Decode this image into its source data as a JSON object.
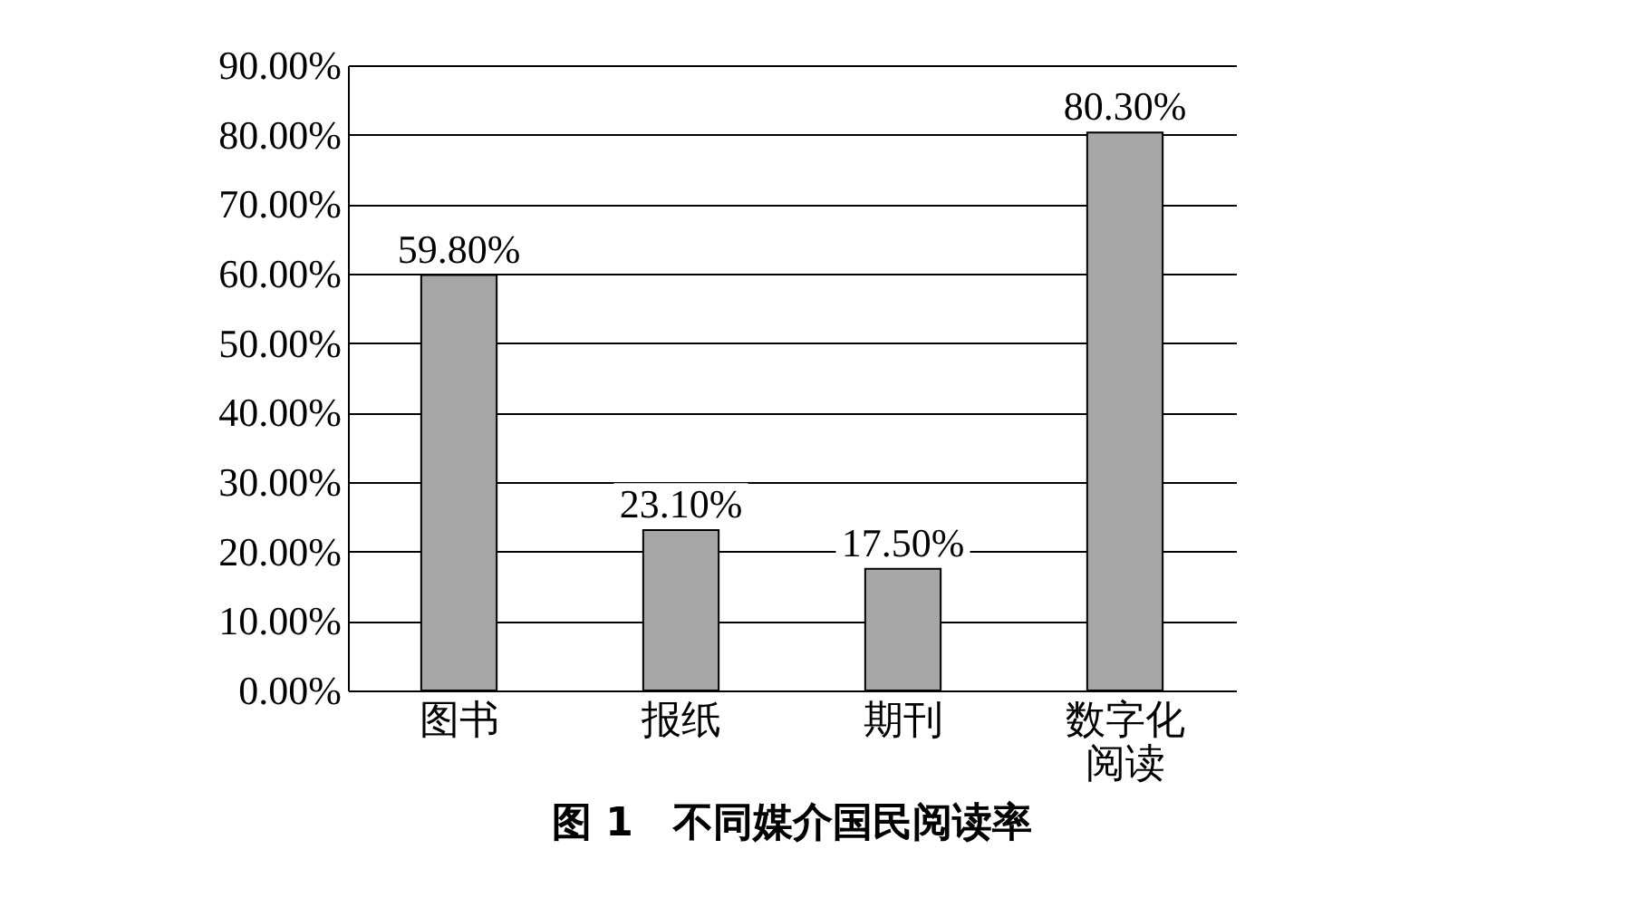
{
  "chart_data": {
    "type": "bar",
    "title": "图 1　不同媒介国民阅读率",
    "categories": [
      "图书",
      "报纸",
      "期刊",
      "数字化阅读"
    ],
    "values": [
      59.8,
      23.1,
      17.5,
      80.3
    ],
    "color": "#a6a6a6",
    "value_labels": [
      "59.80%",
      "23.10%",
      "17.50%",
      "80.30%"
    ],
    "ylim": [
      0,
      90
    ],
    "yticks": [
      {
        "value": 0,
        "label": "0.00%"
      },
      {
        "value": 10,
        "label": "10.00%"
      },
      {
        "value": 20,
        "label": "20.00%"
      },
      {
        "value": 30,
        "label": "30.00%"
      },
      {
        "value": 40,
        "label": "40.00%"
      },
      {
        "value": 50,
        "label": "50.00%"
      },
      {
        "value": 60,
        "label": "60.00%"
      },
      {
        "value": 70,
        "label": "70.00%"
      },
      {
        "value": 80,
        "label": "80.00%"
      },
      {
        "value": 90,
        "label": "90.00%"
      }
    ],
    "grid": "y"
  }
}
